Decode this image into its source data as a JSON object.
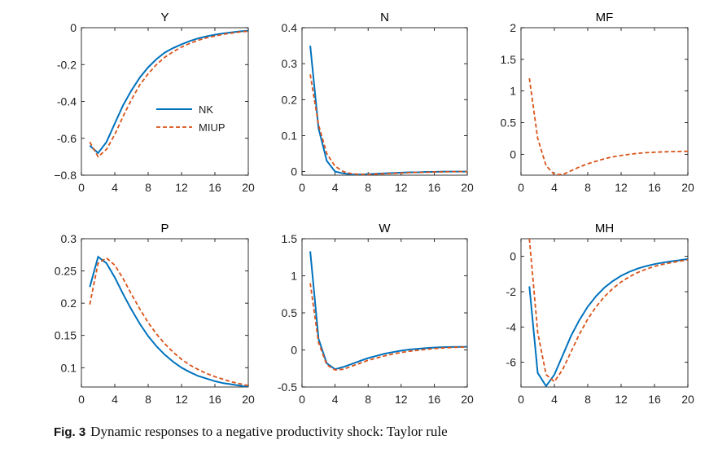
{
  "colors": {
    "nk": "#0072BD",
    "miup": "#D95319",
    "axis": "#000000",
    "text": "#222222"
  },
  "figure": {
    "caption_label": "Fig. 3",
    "caption_text": "Dynamic responses to a negative productivity shock: Taylor rule"
  },
  "chart_data": [
    {
      "type": "line",
      "title": "Y",
      "xlim": [
        0,
        20
      ],
      "xticks": [
        "0",
        "4",
        "8",
        "12",
        "16",
        "20"
      ],
      "ylim": [
        -0.8,
        0
      ],
      "yticks": [
        "0",
        "-0.2",
        "-0.4",
        "-0.6",
        "−0.8"
      ],
      "legend": {
        "placement": "center",
        "entries": [
          "NK",
          "MIUP"
        ]
      },
      "series": [
        {
          "name": "NK",
          "style": "solid",
          "x": [
            1,
            2,
            3,
            4,
            5,
            6,
            7,
            8,
            9,
            10,
            11,
            12,
            13,
            14,
            15,
            16,
            17,
            18,
            19,
            20
          ],
          "y": [
            -0.64,
            -0.68,
            -0.62,
            -0.52,
            -0.42,
            -0.34,
            -0.27,
            -0.215,
            -0.17,
            -0.135,
            -0.11,
            -0.09,
            -0.072,
            -0.058,
            -0.047,
            -0.038,
            -0.031,
            -0.025,
            -0.02,
            -0.017
          ]
        },
        {
          "name": "MIUP",
          "style": "dashed",
          "x": [
            1,
            2,
            3,
            4,
            5,
            6,
            7,
            8,
            9,
            10,
            11,
            12,
            13,
            14,
            15,
            16,
            17,
            18,
            19,
            20
          ],
          "y": [
            -0.62,
            -0.7,
            -0.66,
            -0.58,
            -0.48,
            -0.39,
            -0.31,
            -0.25,
            -0.2,
            -0.16,
            -0.13,
            -0.105,
            -0.085,
            -0.068,
            -0.055,
            -0.045,
            -0.036,
            -0.029,
            -0.023,
            -0.019
          ]
        }
      ]
    },
    {
      "type": "line",
      "title": "N",
      "xlim": [
        0,
        20
      ],
      "xticks": [
        "0",
        "4",
        "8",
        "12",
        "16",
        "20"
      ],
      "ylim": [
        -0.01,
        0.4
      ],
      "yticks": [
        "0",
        "0.1",
        "0.2",
        "0.3",
        "0.4"
      ],
      "series": [
        {
          "name": "NK",
          "style": "solid",
          "x": [
            1,
            2,
            3,
            4,
            5,
            6,
            7,
            8,
            9,
            10,
            11,
            12,
            13,
            14,
            15,
            16,
            17,
            18,
            19,
            20
          ],
          "y": [
            0.35,
            0.12,
            0.03,
            0.0,
            -0.005,
            -0.008,
            -0.008,
            -0.007,
            -0.006,
            -0.005,
            -0.004,
            -0.003,
            -0.002,
            -0.002,
            -0.001,
            -0.001,
            0.0,
            0.0,
            0.0,
            0.0
          ]
        },
        {
          "name": "MIUP",
          "style": "dashed",
          "x": [
            1,
            2,
            3,
            4,
            5,
            6,
            7,
            8,
            9,
            10,
            11,
            12,
            13,
            14,
            15,
            16,
            17,
            18,
            19,
            20
          ],
          "y": [
            0.27,
            0.13,
            0.05,
            0.015,
            0.0,
            -0.006,
            -0.008,
            -0.008,
            -0.007,
            -0.006,
            -0.005,
            -0.004,
            -0.003,
            -0.002,
            -0.002,
            -0.001,
            -0.001,
            0.0,
            0.0,
            0.0
          ]
        }
      ]
    },
    {
      "type": "line",
      "title": "MF",
      "xlim": [
        0,
        20
      ],
      "xticks": [
        "0",
        "4",
        "8",
        "12",
        "16",
        "20"
      ],
      "ylim": [
        -0.33,
        2
      ],
      "yticks": [
        "0",
        "0.5",
        "1",
        "1.5",
        "2"
      ],
      "series": [
        {
          "name": "MIUP",
          "style": "dashed",
          "x": [
            1,
            2,
            3,
            4,
            5,
            6,
            7,
            8,
            9,
            10,
            11,
            12,
            13,
            14,
            15,
            16,
            17,
            18,
            19,
            20
          ],
          "y": [
            1.2,
            0.25,
            -0.18,
            -0.32,
            -0.32,
            -0.26,
            -0.2,
            -0.15,
            -0.11,
            -0.07,
            -0.04,
            -0.02,
            0.0,
            0.015,
            0.025,
            0.032,
            0.038,
            0.042,
            0.045,
            0.047
          ]
        }
      ]
    },
    {
      "type": "line",
      "title": "P",
      "xlim": [
        0,
        20
      ],
      "xticks": [
        "0",
        "4",
        "8",
        "12",
        "16",
        "20"
      ],
      "ylim": [
        0.07,
        0.3
      ],
      "yticks": [
        "0.3",
        "0.25",
        "0.2",
        "0.15",
        "0.1"
      ],
      "series": [
        {
          "name": "NK",
          "style": "solid",
          "x": [
            1,
            2,
            3,
            4,
            5,
            6,
            7,
            8,
            9,
            10,
            11,
            12,
            13,
            14,
            15,
            16,
            17,
            18,
            19,
            20
          ],
          "y": [
            0.225,
            0.272,
            0.262,
            0.24,
            0.214,
            0.19,
            0.168,
            0.149,
            0.133,
            0.12,
            0.109,
            0.1,
            0.093,
            0.087,
            0.083,
            0.079,
            0.076,
            0.074,
            0.072,
            0.07
          ]
        },
        {
          "name": "MIUP",
          "style": "dashed",
          "x": [
            1,
            2,
            3,
            4,
            5,
            6,
            7,
            8,
            9,
            10,
            11,
            12,
            13,
            14,
            15,
            16,
            17,
            18,
            19,
            20
          ],
          "y": [
            0.198,
            0.262,
            0.27,
            0.259,
            0.238,
            0.214,
            0.191,
            0.17,
            0.152,
            0.137,
            0.124,
            0.113,
            0.104,
            0.097,
            0.091,
            0.086,
            0.082,
            0.078,
            0.075,
            0.072
          ]
        }
      ]
    },
    {
      "type": "line",
      "title": "W",
      "xlim": [
        0,
        20
      ],
      "xticks": [
        "0",
        "4",
        "8",
        "12",
        "16",
        "20"
      ],
      "ylim": [
        -0.5,
        1.5
      ],
      "yticks": [
        "1.5",
        "1",
        "0.5",
        "0",
        "-0.5"
      ],
      "series": [
        {
          "name": "NK",
          "style": "solid",
          "x": [
            1,
            2,
            3,
            4,
            5,
            6,
            7,
            8,
            9,
            10,
            11,
            12,
            13,
            14,
            15,
            16,
            17,
            18,
            19,
            20
          ],
          "y": [
            1.33,
            0.15,
            -0.18,
            -0.26,
            -0.23,
            -0.19,
            -0.15,
            -0.11,
            -0.08,
            -0.05,
            -0.03,
            -0.01,
            0.005,
            0.015,
            0.025,
            0.032,
            0.037,
            0.04,
            0.042,
            0.043
          ]
        },
        {
          "name": "MIUP",
          "style": "dashed",
          "x": [
            1,
            2,
            3,
            4,
            5,
            6,
            7,
            8,
            9,
            10,
            11,
            12,
            13,
            14,
            15,
            16,
            17,
            18,
            19,
            20
          ],
          "y": [
            0.9,
            0.1,
            -0.2,
            -0.27,
            -0.26,
            -0.22,
            -0.18,
            -0.14,
            -0.11,
            -0.08,
            -0.055,
            -0.035,
            -0.018,
            -0.005,
            0.008,
            0.018,
            0.026,
            0.032,
            0.037,
            0.04
          ]
        }
      ]
    },
    {
      "type": "line",
      "title": "MH",
      "xlim": [
        0,
        20
      ],
      "xticks": [
        "0",
        "4",
        "8",
        "12",
        "16",
        "20"
      ],
      "ylim": [
        -7.4,
        1
      ],
      "yticks": [
        "0",
        "-2",
        "-4",
        "-6"
      ],
      "series": [
        {
          "name": "NK",
          "style": "solid",
          "x": [
            1,
            2,
            3,
            4,
            5,
            6,
            7,
            8,
            9,
            10,
            11,
            12,
            13,
            14,
            15,
            16,
            17,
            18,
            19,
            20
          ],
          "y": [
            -1.7,
            -6.6,
            -7.35,
            -6.7,
            -5.6,
            -4.5,
            -3.6,
            -2.85,
            -2.25,
            -1.77,
            -1.4,
            -1.1,
            -0.87,
            -0.69,
            -0.55,
            -0.44,
            -0.35,
            -0.28,
            -0.22,
            -0.15
          ]
        },
        {
          "name": "MIUP",
          "style": "dashed",
          "x": [
            1,
            2,
            3,
            4,
            5,
            6,
            7,
            8,
            9,
            10,
            11,
            12,
            13,
            14,
            15,
            16,
            17,
            18,
            19,
            20
          ],
          "y": [
            1.0,
            -4.3,
            -6.7,
            -7.1,
            -6.4,
            -5.4,
            -4.4,
            -3.55,
            -2.85,
            -2.28,
            -1.82,
            -1.45,
            -1.15,
            -0.91,
            -0.72,
            -0.57,
            -0.45,
            -0.35,
            -0.27,
            -0.2
          ]
        }
      ]
    }
  ]
}
